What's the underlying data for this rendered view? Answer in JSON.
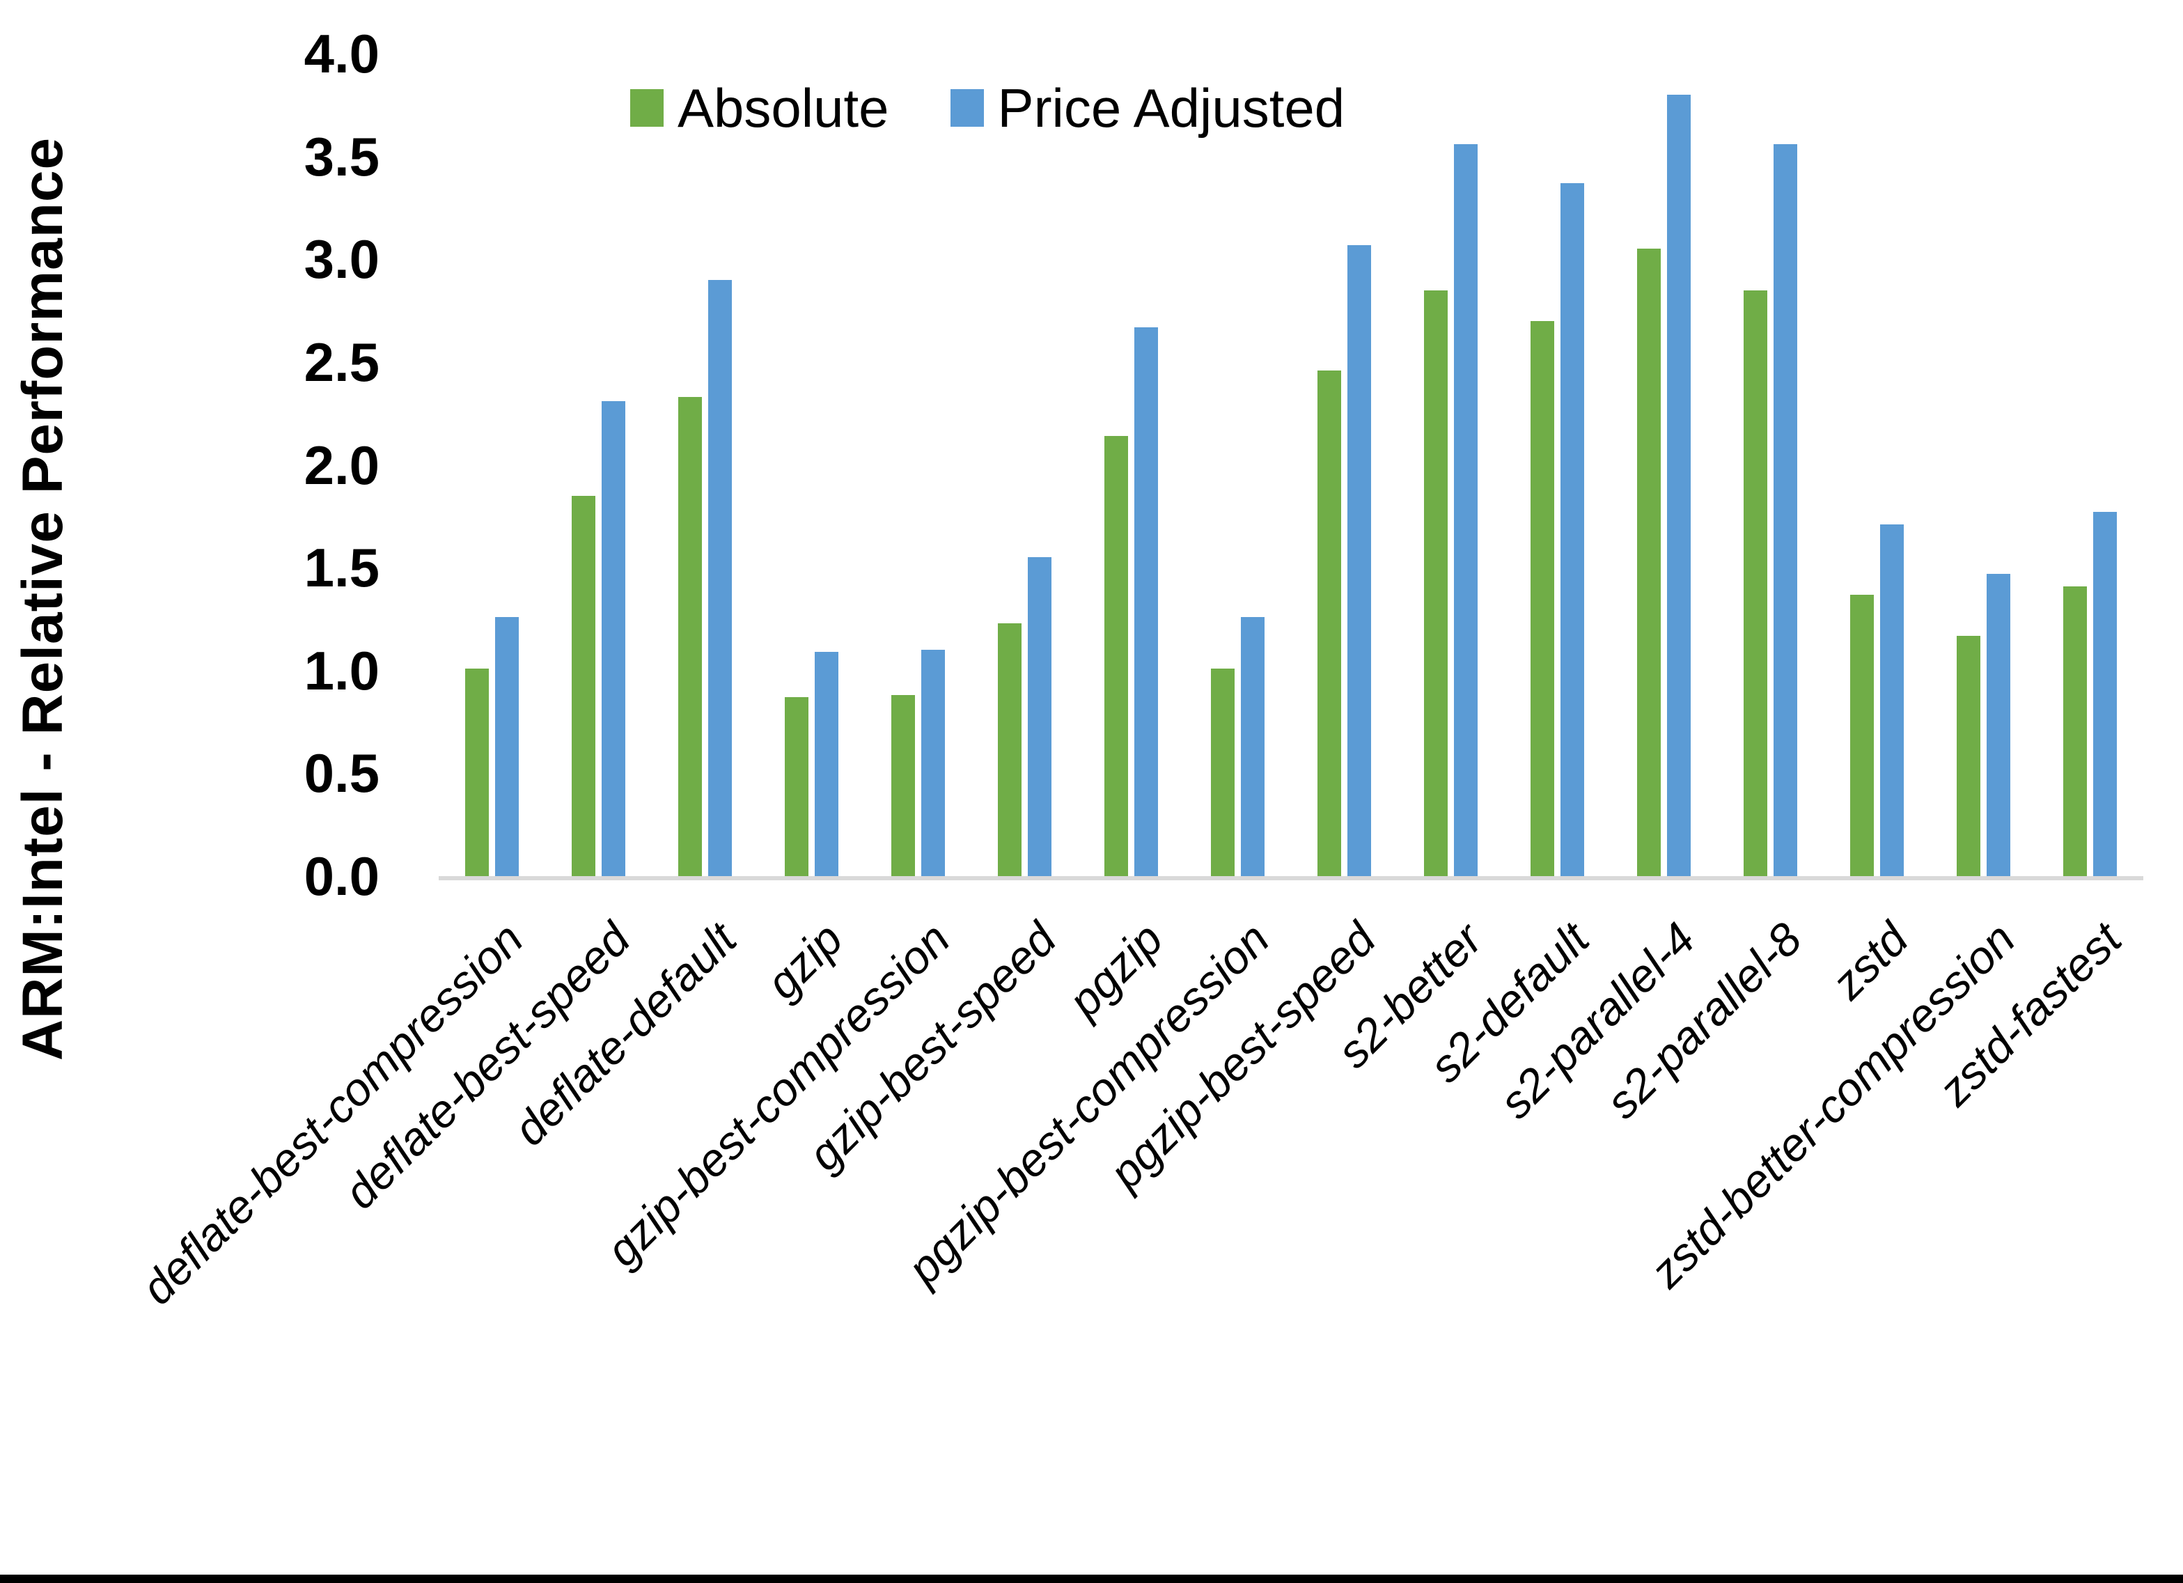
{
  "chart_data": {
    "type": "bar",
    "title": "",
    "xlabel": "",
    "ylabel": "ARM:Intel - Relative Performance",
    "ylim": [
      0.0,
      4.0
    ],
    "ytick_labels": [
      "4.0",
      "3.5",
      "3.0",
      "2.5",
      "2.0",
      "1.5",
      "1.0",
      "0.5",
      "0.0"
    ],
    "grid": false,
    "legend_position": "top-center",
    "categories": [
      "deflate-best-compression",
      "deflate-best-speed",
      "deflate-default",
      "gzip",
      "gzip-best-compression",
      "gzip-best-speed",
      "pgzip",
      "pgzip-best-compression",
      "pgzip-best-speed",
      "s2-better",
      "s2-default",
      "s2-parallel-4",
      "s2-parallel-8",
      "zstd",
      "zstd-better-compression",
      "zstd-fastest"
    ],
    "series": [
      {
        "name": "Absolute",
        "color": "#70AD47",
        "values": [
          1.01,
          1.85,
          2.33,
          0.87,
          0.88,
          1.23,
          2.14,
          1.01,
          2.46,
          2.85,
          2.7,
          3.05,
          2.85,
          1.37,
          1.17,
          1.41
        ]
      },
      {
        "name": "Price Adjusted",
        "color": "#5B9BD5",
        "values": [
          1.26,
          2.31,
          2.9,
          1.09,
          1.1,
          1.55,
          2.67,
          1.26,
          3.07,
          3.56,
          3.37,
          3.8,
          3.56,
          1.71,
          1.47,
          1.77
        ]
      }
    ]
  },
  "colors": {
    "axis_line": "#D9D9D9",
    "text": "#000000",
    "bottom_border": "#000000",
    "background": "#FFFFFF"
  }
}
